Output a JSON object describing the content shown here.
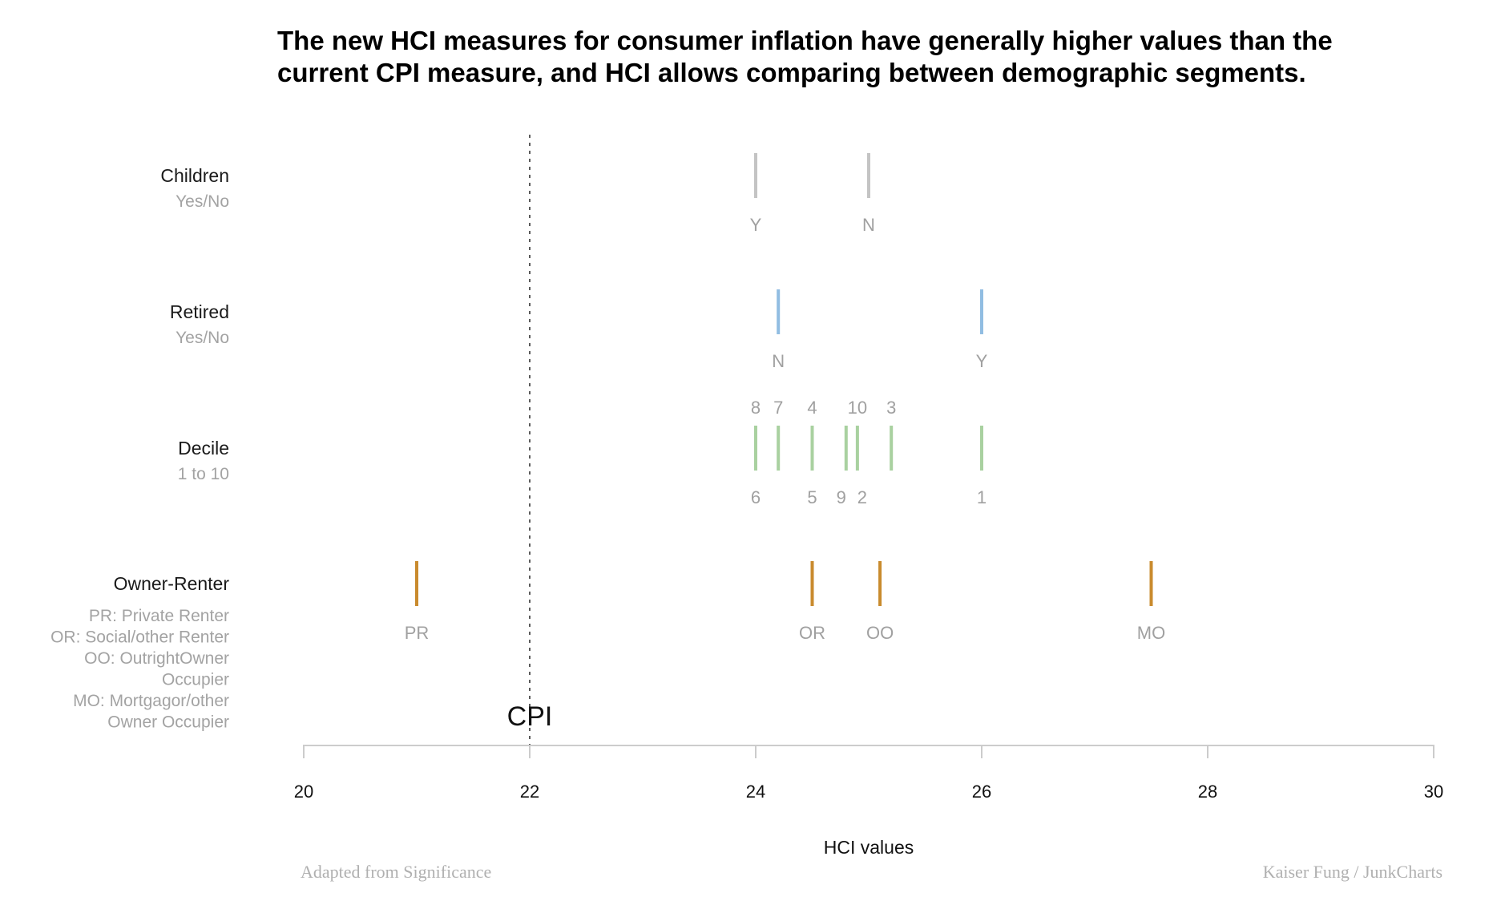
{
  "title_lines": [
    "The new HCI measures for consumer inflation have generally higher values than the",
    "current CPI measure, and HCI allows comparing between demographic segments."
  ],
  "footer": {
    "source": "Adapted from Significance",
    "credit": "Kaiser Fung / JunkCharts"
  },
  "chart_data": {
    "type": "strip",
    "title": "The new HCI measures for consumer inflation have generally higher values than the current CPI measure, and HCI allows comparing between demographic segments.",
    "xlabel": "HCI values",
    "xlim": [
      20,
      30
    ],
    "xticks": [
      20,
      22,
      24,
      26,
      28,
      30
    ],
    "grid": false,
    "reference": {
      "label": "CPI",
      "value": 22,
      "style": "dotted"
    },
    "groups": [
      {
        "name": "Children",
        "description": [
          "Yes/No"
        ],
        "color": "#c4c4c4",
        "points": [
          {
            "label": "Y",
            "value": 24.0,
            "label_position": "below"
          },
          {
            "label": "N",
            "value": 25.0,
            "label_position": "below"
          }
        ]
      },
      {
        "name": "Retired",
        "description": [
          "Yes/No"
        ],
        "color": "#91bde2",
        "points": [
          {
            "label": "N",
            "value": 24.2,
            "label_position": "below"
          },
          {
            "label": "Y",
            "value": 26.0,
            "label_position": "below"
          }
        ]
      },
      {
        "name": "Decile",
        "description": [
          "1 to 10"
        ],
        "color": "#a9d1a0",
        "points": [
          {
            "label": "8",
            "value": 24.0,
            "label_position": "above"
          },
          {
            "label": "7",
            "value": 24.2,
            "label_position": "above"
          },
          {
            "label": "4",
            "value": 24.5,
            "label_position": "above"
          },
          {
            "label": "10",
            "value": 24.9,
            "label_position": "above"
          },
          {
            "label": "3",
            "value": 25.2,
            "label_position": "above"
          },
          {
            "label": "6",
            "value": 24.0,
            "label_position": "below"
          },
          {
            "label": "5",
            "value": 24.5,
            "label_position": "below"
          },
          {
            "label": "9",
            "value": 24.8,
            "label_position": "below"
          },
          {
            "label": "2",
            "value": 24.9,
            "label_position": "below"
          },
          {
            "label": "1",
            "value": 26.0,
            "label_position": "below"
          }
        ]
      },
      {
        "name": "Owner-Renter",
        "description": [
          "PR: Private Renter",
          "OR: Social/other Renter",
          "OO: OutrightOwner",
          "Occupier",
          "MO: Mortgagor/other",
          "Owner Occupier"
        ],
        "color": "#c98b2e",
        "points": [
          {
            "label": "PR",
            "value": 21.0,
            "label_position": "below"
          },
          {
            "label": "OR",
            "value": 24.5,
            "label_position": "below"
          },
          {
            "label": "OO",
            "value": 25.1,
            "label_position": "below"
          },
          {
            "label": "MO",
            "value": 27.5,
            "label_position": "below"
          }
        ]
      }
    ]
  }
}
